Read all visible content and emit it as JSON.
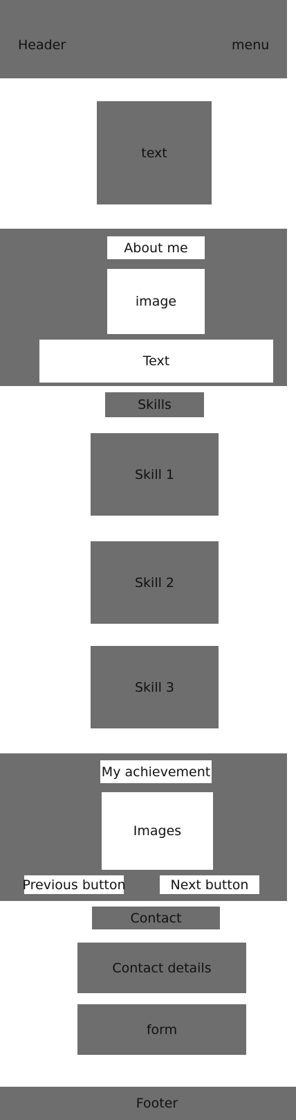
{
  "header": {
    "title": "Header",
    "menu": "menu"
  },
  "hero": {
    "text": "text"
  },
  "about": {
    "heading": "About me",
    "image": "image",
    "text": "Text"
  },
  "skills": {
    "heading": "Skills",
    "items": [
      "Skill 1",
      "Skill 2",
      "Skill 3"
    ]
  },
  "achievements": {
    "heading": "My achievement",
    "images": "Images",
    "previous_button": "Previous button",
    "next_button": "Next button"
  },
  "contact": {
    "heading": "Contact",
    "details": "Contact details",
    "form": "form"
  },
  "footer": {
    "text": "Footer"
  },
  "colors": {
    "block": "#6e6e6e",
    "background": "#ffffff",
    "text": "#111111"
  }
}
